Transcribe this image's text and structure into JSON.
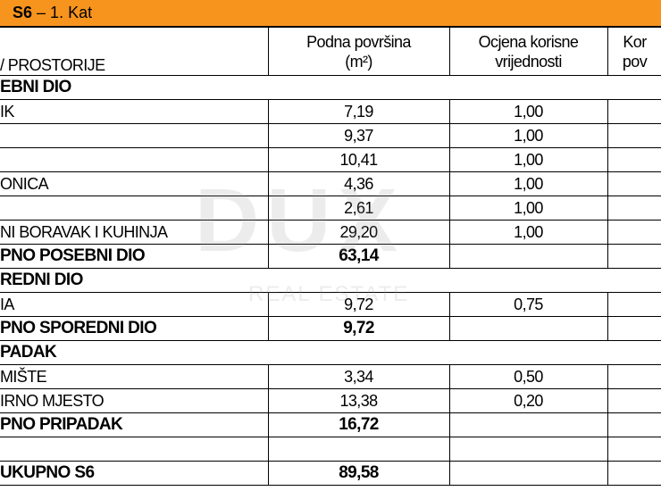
{
  "header": {
    "title": "S6",
    "subtitle": "– 1. Kat"
  },
  "watermark": {
    "brand": "DUX",
    "tagline": "REAL ESTATE"
  },
  "table": {
    "columns": [
      [
        "/ PROSTORIJE"
      ],
      [
        "Podna površina",
        "(m²)"
      ],
      [
        "Ocjena korisne",
        "vrijednosti"
      ],
      [
        "Kor",
        "pov"
      ]
    ],
    "rows": [
      {
        "style": "section",
        "cells": [
          "EBNI DIO"
        ]
      },
      {
        "style": "item",
        "cells": [
          "IK",
          "7,19",
          "1,00",
          null
        ]
      },
      {
        "style": "item",
        "cells": [
          null,
          "9,37",
          "1,00",
          null
        ]
      },
      {
        "style": "item",
        "cells": [
          null,
          "10,41",
          "1,00",
          null
        ]
      },
      {
        "style": "item",
        "cells": [
          "ONICA",
          "4,36",
          "1,00",
          null
        ]
      },
      {
        "style": "item",
        "cells": [
          null,
          "2,61",
          "1,00",
          null
        ]
      },
      {
        "style": "item",
        "cells": [
          "NI BORAVAK I KUHINJA",
          "29,20",
          "1,00",
          null
        ]
      },
      {
        "style": "total",
        "cells": [
          "PNO POSEBNI DIO",
          "63,14",
          null,
          null
        ]
      },
      {
        "style": "section",
        "cells": [
          "REDNI DIO"
        ]
      },
      {
        "style": "item",
        "cells": [
          "IA",
          "9,72",
          "0,75",
          null
        ]
      },
      {
        "style": "total",
        "cells": [
          "PNO SPOREDNI DIO",
          "9,72",
          null,
          null
        ]
      },
      {
        "style": "section",
        "cells": [
          "PADAK"
        ]
      },
      {
        "style": "item",
        "cells": [
          "MIŠTE",
          "3,34",
          "0,50",
          null
        ]
      },
      {
        "style": "item",
        "cells": [
          "IRNO MJESTO",
          "13,38",
          "0,20",
          null
        ]
      },
      {
        "style": "total",
        "cells": [
          "PNO PRIPADAK",
          "16,72",
          null,
          null
        ]
      },
      {
        "style": "blank",
        "cells": []
      },
      {
        "style": "total",
        "cells": [
          "UKUPNO S6",
          "89,58",
          null,
          null
        ]
      }
    ]
  }
}
